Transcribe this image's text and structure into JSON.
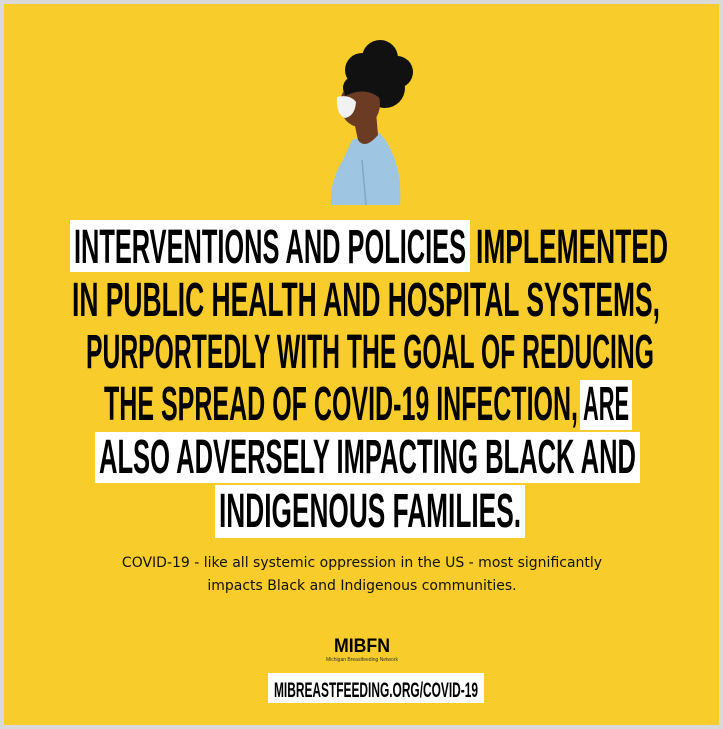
{
  "headline": {
    "lines": [
      [
        "INTERVENTIONS AND POLICIES",
        "IMPLEMENTED"
      ],
      [
        "IN PUBLIC HEALTH AND HOSPITAL SYSTEMS,"
      ],
      [
        "PURPORTEDLY WITH THE GOAL OF REDUCING"
      ],
      [
        "THE SPREAD OF COVID-19 INFECTION,",
        "ARE"
      ],
      [
        "ALSO ADVERSELY IMPACTING BLACK AND"
      ],
      [
        "INDIGENOUS FAMILIES."
      ]
    ]
  },
  "body": {
    "lines": [
      "COVID-19 - like all systemic oppression in the US - most significantly",
      "impacts Black and Indigenous communities."
    ]
  },
  "logo": {
    "name": "MIBFN",
    "tagline": "Michigan Breastfeeding Network"
  },
  "url": "MIBREASTFEEDING.ORG/COVID-19"
}
